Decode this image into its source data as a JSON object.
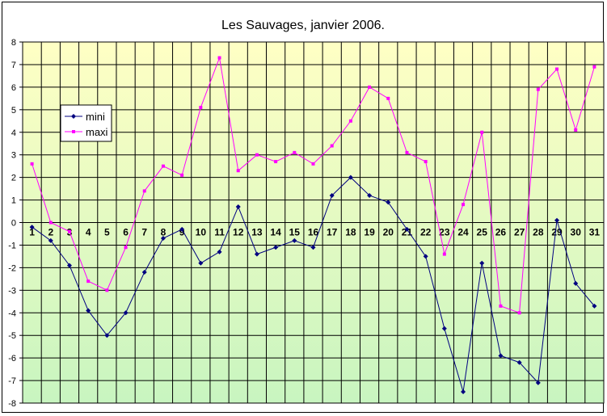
{
  "chart_data": {
    "type": "line",
    "title": "Les Sauvages, janvier 2006.",
    "xlabel": "",
    "ylabel": "",
    "categories": [
      "1",
      "2",
      "3",
      "4",
      "5",
      "6",
      "7",
      "8",
      "9",
      "10",
      "11",
      "12",
      "13",
      "14",
      "15",
      "16",
      "17",
      "18",
      "19",
      "20",
      "21",
      "22",
      "23",
      "24",
      "25",
      "26",
      "27",
      "28",
      "29",
      "30",
      "31"
    ],
    "ylim": [
      -8,
      8
    ],
    "yticks": [
      -8,
      -7,
      -6,
      -5,
      -4,
      -3,
      -2,
      -1,
      0,
      1,
      2,
      3,
      4,
      5,
      6,
      7,
      8
    ],
    "grid": true,
    "legend_position": "left",
    "background_gradient": [
      "#ffffc4",
      "#c8f5c0"
    ],
    "series": [
      {
        "name": "mini",
        "color": "#000080",
        "marker": "diamond",
        "values": [
          -0.2,
          -0.8,
          -1.9,
          -3.9,
          -5.0,
          -4.0,
          -2.2,
          -0.7,
          -0.3,
          -1.8,
          -1.3,
          0.7,
          -1.4,
          -1.1,
          -0.8,
          -1.1,
          1.2,
          2.0,
          1.2,
          0.9,
          -0.3,
          -1.5,
          -4.7,
          -7.5,
          -1.8,
          -5.9,
          -6.2,
          -7.1,
          0.1,
          -2.7,
          -3.7
        ]
      },
      {
        "name": "maxi",
        "color": "#ff00ff",
        "marker": "square",
        "values": [
          2.6,
          0.0,
          -0.4,
          -2.6,
          -3.0,
          -1.1,
          1.4,
          2.5,
          2.1,
          5.1,
          7.3,
          2.3,
          3.0,
          2.7,
          3.1,
          2.6,
          3.4,
          4.5,
          6.0,
          5.5,
          3.1,
          2.7,
          -1.4,
          0.8,
          4.0,
          -3.7,
          -4.0,
          5.9,
          6.8,
          4.1,
          6.9
        ]
      }
    ]
  }
}
